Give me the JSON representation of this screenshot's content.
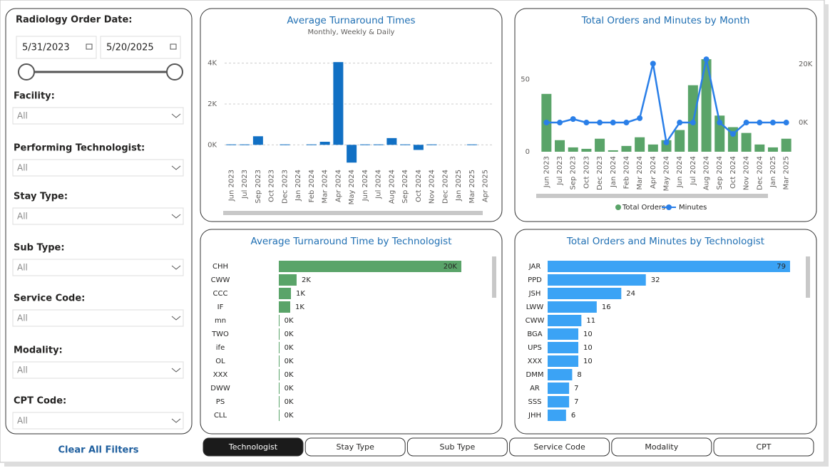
{
  "filters": {
    "date": {
      "label": "Radiology Order Date:",
      "start": "5/31/2023",
      "end": "5/20/2025"
    },
    "dropdowns": [
      {
        "label": "Facility:",
        "value": "All"
      },
      {
        "label": "Performing Technologist:",
        "value": "All"
      },
      {
        "label": "Stay Type:",
        "value": "All"
      },
      {
        "label": "Sub Type:",
        "value": "All"
      },
      {
        "label": "Service Code:",
        "value": "All"
      },
      {
        "label": "Modality:",
        "value": "All"
      },
      {
        "label": "CPT Code:",
        "value": "All"
      }
    ],
    "clear": "Clear All Filters"
  },
  "chart_data": [
    {
      "type": "bar",
      "title": "Average Turnaround Times",
      "subtitle": "Monthly, Weekly & Daily",
      "categories": [
        "Jun 2023",
        "Jul 2023",
        "Sep 2023",
        "Oct 2023",
        "Dec 2023",
        "Jan 2024",
        "Feb 2024",
        "Mar 2024",
        "Apr 2024",
        "May 2024",
        "Jun 2024",
        "Jul 2024",
        "Aug 2024",
        "Sep 2024",
        "Oct 2024",
        "Nov 2024",
        "Dec 2024",
        "Jan 2025",
        "Mar 2025",
        "Apr 2025"
      ],
      "values": [
        20,
        20,
        420,
        null,
        20,
        null,
        20,
        150,
        4050,
        -870,
        20,
        20,
        330,
        20,
        -250,
        20,
        null,
        null,
        20,
        null
      ],
      "color": "#1170c4",
      "ylim": [
        -1000,
        4300
      ],
      "yticks": [
        {
          "value": 0,
          "label": "0K"
        },
        {
          "value": 2000,
          "label": "2K"
        },
        {
          "value": 4000,
          "label": "4K"
        }
      ],
      "grid": true
    },
    {
      "type": "combo",
      "title": "Total Orders and Minutes by Month",
      "categories": [
        "Jun 2023",
        "Jul 2023",
        "Sep 2023",
        "Oct 2023",
        "Dec 2023",
        "Jan 2024",
        "Feb 2024",
        "Mar 2024",
        "Apr 2024",
        "May 2024",
        "Jun 2024",
        "Jul 2024",
        "Aug 2024",
        "Sep 2024",
        "Oct 2024",
        "Nov 2024",
        "Dec 2024",
        "Jan 2025",
        "Mar 2025"
      ],
      "series": [
        {
          "name": "Total Orders",
          "type": "bar",
          "color": "#5aa469",
          "values": [
            40,
            8,
            3,
            2,
            9,
            1,
            4,
            10,
            5,
            8,
            15,
            46,
            64,
            25,
            17,
            13,
            5,
            3,
            9
          ]
        },
        {
          "name": "Minutes",
          "type": "line",
          "axis": "y2",
          "color": "#2a7fe8",
          "values": [
            0,
            0,
            1200,
            0,
            0,
            0,
            0,
            1500,
            20200,
            -6800,
            0,
            0,
            21700,
            0,
            -3900,
            0,
            0,
            0,
            0
          ]
        }
      ],
      "ylim": [
        0,
        68
      ],
      "yticks": [
        0,
        50
      ],
      "y2lim": [
        -10000,
        23700
      ],
      "y2ticks": [
        {
          "value": 0,
          "label": "0K"
        },
        {
          "value": 20000,
          "label": "20K"
        }
      ],
      "legend": "bottom"
    },
    {
      "type": "hbar",
      "title": "Average Turnaround Time by Technologist",
      "categories": [
        "CHH",
        "CWW",
        "CCC",
        "IF",
        "mn",
        "TWO",
        "ife",
        "OL",
        "XXX",
        "DWW",
        "PS",
        "CLL"
      ],
      "values": [
        20000,
        1950,
        1330,
        1250,
        50,
        50,
        50,
        50,
        50,
        50,
        50,
        50
      ],
      "value_labels": [
        "20K",
        "2K",
        "1K",
        "1K",
        "0K",
        "0K",
        "0K",
        "0K",
        "0K",
        "0K",
        "0K",
        "0K"
      ],
      "color": "#5aa469"
    },
    {
      "type": "hbar",
      "title": "Total Orders and Minutes by Technologist",
      "categories": [
        "JAR",
        "PPD",
        "JSH",
        "LWW",
        "CWW",
        "BGA",
        "UPS",
        "XXX",
        "DMM",
        "AR",
        "SSS",
        "JHH"
      ],
      "values": [
        79,
        32,
        24,
        16,
        11,
        10,
        10,
        10,
        8,
        7,
        7,
        6
      ],
      "color": "#3ba3f5"
    }
  ],
  "tabs": [
    {
      "label": "Technologist",
      "active": true
    },
    {
      "label": "Stay Type",
      "active": false
    },
    {
      "label": "Sub Type",
      "active": false
    },
    {
      "label": "Service Code",
      "active": false
    },
    {
      "label": "Modality",
      "active": false
    },
    {
      "label": "CPT",
      "active": false
    }
  ]
}
